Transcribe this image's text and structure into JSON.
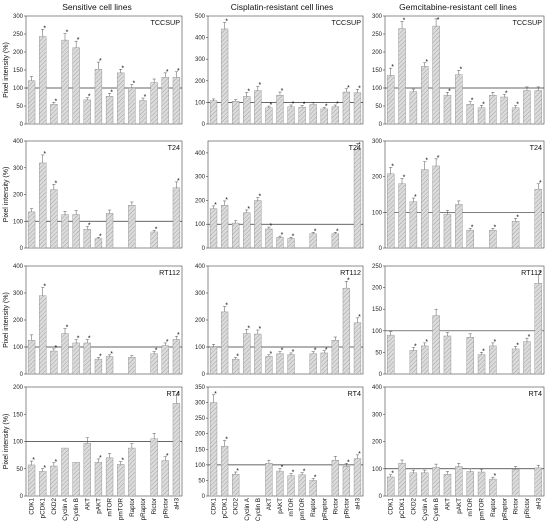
{
  "columns": [
    "Sensitive cell lines",
    "Cisplatin-resistant cell lines",
    "Gemcitabine-resistant cell lines"
  ],
  "rows": [
    "TCCSUP",
    "T24",
    "RT112",
    "RT4"
  ],
  "ylabel": "Pixel intensity (%)",
  "colors": {
    "bar_fill": "#dcdcdc",
    "hatch": "#9a9a9a",
    "bar_edge": "#888888",
    "axis": "#444444",
    "reference_line": "#333333"
  },
  "chart_data": {
    "type": "bar",
    "categories": [
      "CDK1",
      "pCDK1",
      "CKD2",
      "Cyclin A",
      "Cyclin B",
      "AKT",
      "pAKT",
      "mTOR",
      "pmTOR",
      "Raptor",
      "pRaptor",
      "Rictor",
      "pRictor",
      "aH3"
    ],
    "reference_line": 100,
    "panels": [
      {
        "row": 0,
        "col": 0,
        "label": "TCCSUP",
        "ylim": [
          0,
          300
        ],
        "yticks": [
          0,
          50,
          100,
          150,
          200,
          250,
          300
        ],
        "values": [
          120,
          243,
          55,
          233,
          212,
          67,
          152,
          77,
          142,
          100,
          65,
          115,
          130,
          130
        ],
        "errors": [
          12,
          20,
          5,
          18,
          18,
          6,
          20,
          8,
          10,
          10,
          7,
          10,
          12,
          15
        ],
        "significant": [
          false,
          true,
          true,
          true,
          true,
          true,
          true,
          true,
          true,
          true,
          true,
          false,
          true,
          true
        ]
      },
      {
        "row": 0,
        "col": 1,
        "label": "TCCSUP",
        "ylim": [
          0,
          500
        ],
        "yticks": [
          0,
          100,
          200,
          300,
          400,
          500
        ],
        "values": [
          108,
          440,
          105,
          128,
          155,
          75,
          133,
          80,
          78,
          90,
          70,
          80,
          148,
          145
        ],
        "errors": [
          8,
          30,
          8,
          18,
          20,
          8,
          15,
          8,
          8,
          8,
          6,
          8,
          15,
          15
        ],
        "significant": [
          false,
          true,
          false,
          true,
          true,
          true,
          true,
          true,
          true,
          false,
          true,
          true,
          true,
          true
        ]
      },
      {
        "row": 0,
        "col": 2,
        "label": "TCCSUP",
        "ylim": [
          0,
          300
        ],
        "yticks": [
          0,
          50,
          100,
          150,
          200,
          250,
          300
        ],
        "values": [
          135,
          265,
          90,
          160,
          272,
          80,
          137,
          55,
          45,
          80,
          75,
          45,
          93,
          93
        ],
        "errors": [
          20,
          20,
          7,
          10,
          20,
          8,
          12,
          7,
          7,
          8,
          7,
          6,
          10,
          10
        ],
        "significant": [
          true,
          true,
          false,
          true,
          true,
          true,
          true,
          true,
          true,
          false,
          true,
          true,
          false,
          false
        ]
      },
      {
        "row": 1,
        "col": 0,
        "label": "T24",
        "ylim": [
          0,
          400
        ],
        "yticks": [
          0,
          100,
          200,
          300,
          400
        ],
        "values": [
          135,
          318,
          218,
          125,
          125,
          70,
          35,
          130,
          null,
          160,
          null,
          60,
          null,
          225
        ],
        "errors": [
          12,
          30,
          20,
          12,
          15,
          10,
          5,
          12,
          null,
          12,
          null,
          5,
          null,
          22
        ],
        "significant": [
          false,
          true,
          true,
          false,
          false,
          true,
          true,
          false,
          false,
          false,
          false,
          true,
          false,
          true
        ]
      },
      {
        "row": 1,
        "col": 1,
        "label": "T24",
        "ylim": [
          0,
          450
        ],
        "yticks": [
          0,
          100,
          200,
          300,
          400
        ],
        "values": [
          165,
          180,
          105,
          148,
          200,
          80,
          45,
          40,
          null,
          60,
          null,
          60,
          null,
          415
        ],
        "errors": [
          12,
          18,
          10,
          12,
          12,
          8,
          5,
          5,
          null,
          6,
          null,
          6,
          null,
          25
        ],
        "significant": [
          true,
          true,
          false,
          true,
          true,
          true,
          true,
          true,
          false,
          true,
          false,
          true,
          false,
          true
        ]
      },
      {
        "row": 1,
        "col": 2,
        "label": "T24",
        "ylim": [
          0,
          300
        ],
        "yticks": [
          0,
          100,
          200,
          300
        ],
        "values": [
          208,
          180,
          130,
          220,
          230,
          95,
          122,
          50,
          null,
          50,
          null,
          75,
          null,
          165
        ],
        "errors": [
          18,
          15,
          10,
          22,
          20,
          10,
          10,
          5,
          null,
          5,
          null,
          8,
          null,
          15
        ],
        "significant": [
          true,
          true,
          true,
          true,
          true,
          false,
          false,
          true,
          false,
          true,
          false,
          true,
          false,
          true
        ]
      },
      {
        "row": 2,
        "col": 0,
        "label": "RT112",
        "ylim": [
          0,
          400
        ],
        "yticks": [
          0,
          100,
          200,
          300,
          400
        ],
        "values": [
          125,
          290,
          85,
          150,
          115,
          115,
          55,
          65,
          null,
          62,
          null,
          75,
          105,
          128
        ],
        "errors": [
          20,
          30,
          8,
          18,
          12,
          12,
          6,
          6,
          null,
          6,
          null,
          8,
          10,
          12
        ],
        "significant": [
          false,
          true,
          true,
          true,
          true,
          true,
          true,
          true,
          false,
          false,
          false,
          true,
          true,
          true
        ]
      },
      {
        "row": 2,
        "col": 1,
        "label": "RT112",
        "ylim": [
          0,
          400
        ],
        "yticks": [
          0,
          100,
          200,
          300,
          400
        ],
        "values": [
          100,
          230,
          55,
          150,
          148,
          65,
          75,
          72,
          null,
          75,
          78,
          125,
          318,
          190
        ],
        "errors": [
          10,
          20,
          6,
          15,
          15,
          6,
          8,
          6,
          null,
          8,
          8,
          12,
          25,
          18
        ],
        "significant": [
          false,
          true,
          true,
          true,
          true,
          true,
          true,
          true,
          false,
          true,
          true,
          false,
          true,
          true
        ]
      },
      {
        "row": 2,
        "col": 2,
        "label": "RT112",
        "ylim": [
          0,
          250
        ],
        "yticks": [
          0,
          50,
          100,
          150,
          200,
          250
        ],
        "values": [
          90,
          null,
          55,
          65,
          135,
          88,
          null,
          85,
          45,
          65,
          null,
          58,
          75,
          210
        ],
        "errors": [
          8,
          null,
          6,
          7,
          15,
          8,
          null,
          8,
          5,
          7,
          null,
          6,
          8,
          20
        ],
        "significant": [
          false,
          false,
          true,
          true,
          false,
          false,
          false,
          false,
          true,
          true,
          false,
          true,
          true,
          true
        ]
      },
      {
        "row": 3,
        "col": 0,
        "label": "RT4",
        "ylim": [
          0,
          200
        ],
        "yticks": [
          0,
          50,
          100,
          150,
          200
        ],
        "values": [
          57,
          45,
          55,
          88,
          62,
          97,
          62,
          70,
          58,
          88,
          null,
          105,
          65,
          170
        ],
        "errors": [
          7,
          5,
          6,
          null,
          null,
          10,
          6,
          8,
          5,
          8,
          null,
          10,
          7,
          15
        ],
        "significant": [
          true,
          true,
          true,
          false,
          false,
          false,
          true,
          false,
          true,
          false,
          false,
          false,
          true,
          true
        ]
      },
      {
        "row": 3,
        "col": 1,
        "label": "RT4",
        "ylim": [
          0,
          350
        ],
        "yticks": [
          0,
          50,
          100,
          150,
          200,
          250,
          300,
          350
        ],
        "values": [
          300,
          160,
          70,
          null,
          null,
          105,
          80,
          65,
          68,
          50,
          null,
          115,
          95,
          120
        ],
        "errors": [
          25,
          18,
          7,
          null,
          null,
          10,
          8,
          7,
          7,
          6,
          null,
          12,
          10,
          12
        ],
        "significant": [
          true,
          true,
          true,
          false,
          false,
          false,
          true,
          true,
          true,
          true,
          false,
          false,
          true,
          true
        ]
      },
      {
        "row": 3,
        "col": 2,
        "label": "RT4",
        "ylim": [
          0,
          400
        ],
        "yticks": [
          0,
          100,
          200,
          300,
          400
        ],
        "values": [
          70,
          120,
          85,
          85,
          105,
          80,
          108,
          90,
          88,
          62,
          null,
          98,
          null,
          103
        ],
        "errors": [
          8,
          12,
          10,
          10,
          12,
          10,
          12,
          10,
          10,
          7,
          null,
          10,
          null,
          10
        ],
        "significant": [
          true,
          false,
          false,
          false,
          false,
          false,
          false,
          false,
          false,
          true,
          false,
          false,
          false,
          false
        ]
      }
    ]
  }
}
